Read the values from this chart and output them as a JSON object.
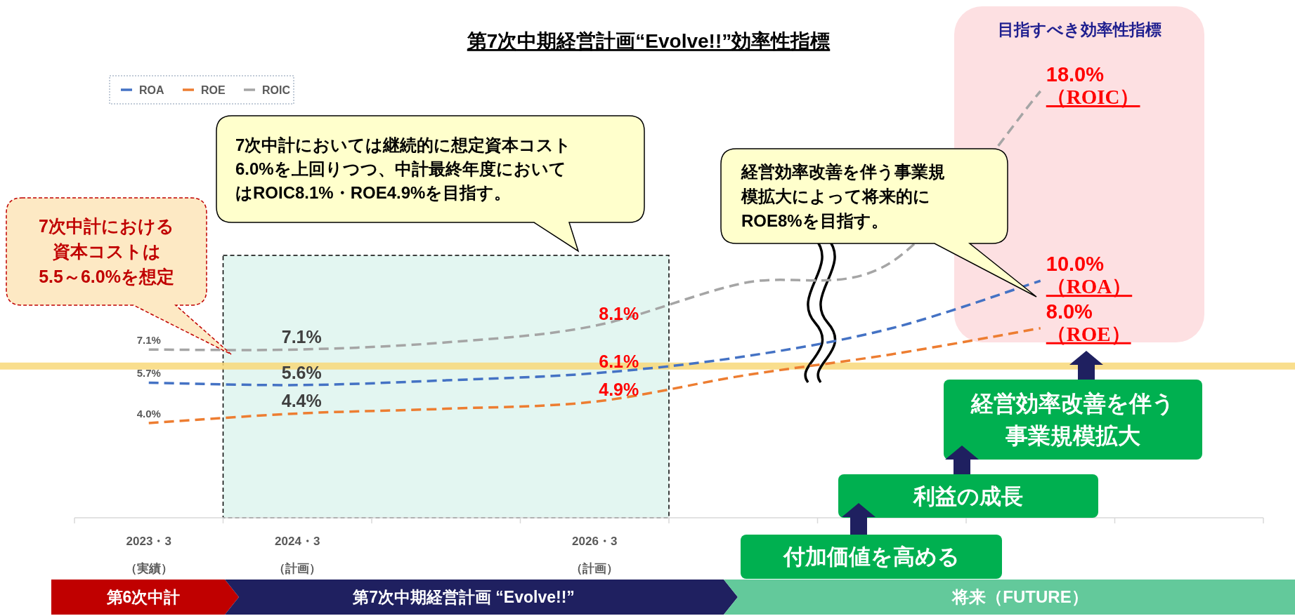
{
  "chart_data": {
    "type": "line",
    "title": "第7次中期経営計画“Evolve!!”効率性指標",
    "categories": [
      "2023・3\n（実績）",
      "2024・3\n（計画）",
      null,
      "2026・3\n（計画）",
      null,
      null,
      null,
      null
    ],
    "tick_labels": "x",
    "line_style": "dashed",
    "legend": "top left",
    "series": [
      {
        "name": "ROA",
        "color": "#4472c4",
        "values": [
          5.7,
          5.6,
          5.8,
          6.1,
          6.8,
          8.0,
          10.0,
          null
        ],
        "value_labels": [
          "5.7%",
          "5.6%",
          null,
          "6.1%",
          null,
          null,
          "10.0%\n（ROA）",
          null
        ]
      },
      {
        "name": "ROE",
        "color": "#ed7d31",
        "values": [
          4.0,
          4.4,
          4.6,
          4.9,
          6.0,
          6.9,
          8.0,
          null
        ],
        "value_labels": [
          "4.0%",
          "4.4%",
          null,
          "4.9%",
          null,
          null,
          "8.0%\n（ROE）",
          null
        ]
      },
      {
        "name": "ROIC",
        "color": "#a5a5a5",
        "values": [
          7.1,
          7.1,
          7.4,
          8.1,
          9.9,
          10.8,
          18.0,
          null
        ],
        "value_labels": [
          "7.1%",
          "7.1%",
          null,
          "8.1%",
          null,
          null,
          "18.0%\n（ROIC）",
          null
        ]
      }
    ],
    "bands": [
      {
        "axis": "x",
        "from": "2024・3\n（計画）",
        "to": "2026・3\n（計画）",
        "color": "#e3f6f1"
      }
    ],
    "ref_lines": [
      {
        "axis": "y",
        "value": 6.4,
        "color": "#f9d97a"
      }
    ],
    "annotations": [
      "7次中計における資本コストは5.5～6.0%を想定",
      "7次中計においては継続的に想定資本コスト6.0%を上回りつつ、中計最終年度においてはROIC8.1%・ROE4.9%を目指す。",
      "経営効率改善を伴う事業規模拡大によって将来的にROE8%を目指す。",
      "目指すべき効率性指標",
      "経営効率改善を伴う事業規模拡大",
      "利益の成長",
      "付加価値を高める",
      "第6次中計",
      "第7次中期経営計画 “Evolve!!”",
      "将来（FUTURE）"
    ]
  }
}
